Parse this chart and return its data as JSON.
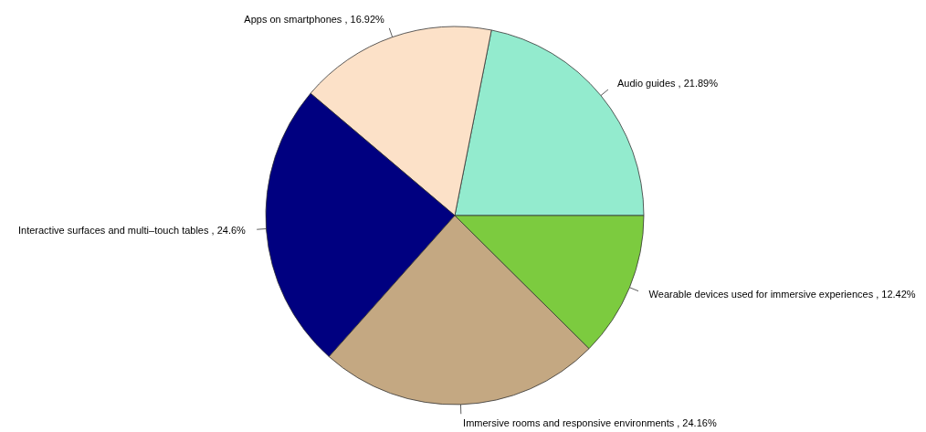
{
  "chart_data": {
    "type": "pie",
    "categories": [
      "Audio guides",
      "Apps on smartphones",
      "Interactive surfaces and multi–touch tables",
      "Immersive rooms and responsive environments",
      "Wearable devices used for immersive experiences"
    ],
    "values": [
      21.89,
      16.92,
      24.6,
      24.16,
      12.42
    ],
    "value_labels": [
      "21.89%",
      "16.92%",
      "24.6%",
      "24.16%",
      "12.42%"
    ],
    "colors": [
      "#93ebce",
      "#fce1c8",
      "#000080",
      "#c4a882",
      "#7ccb3f"
    ]
  }
}
